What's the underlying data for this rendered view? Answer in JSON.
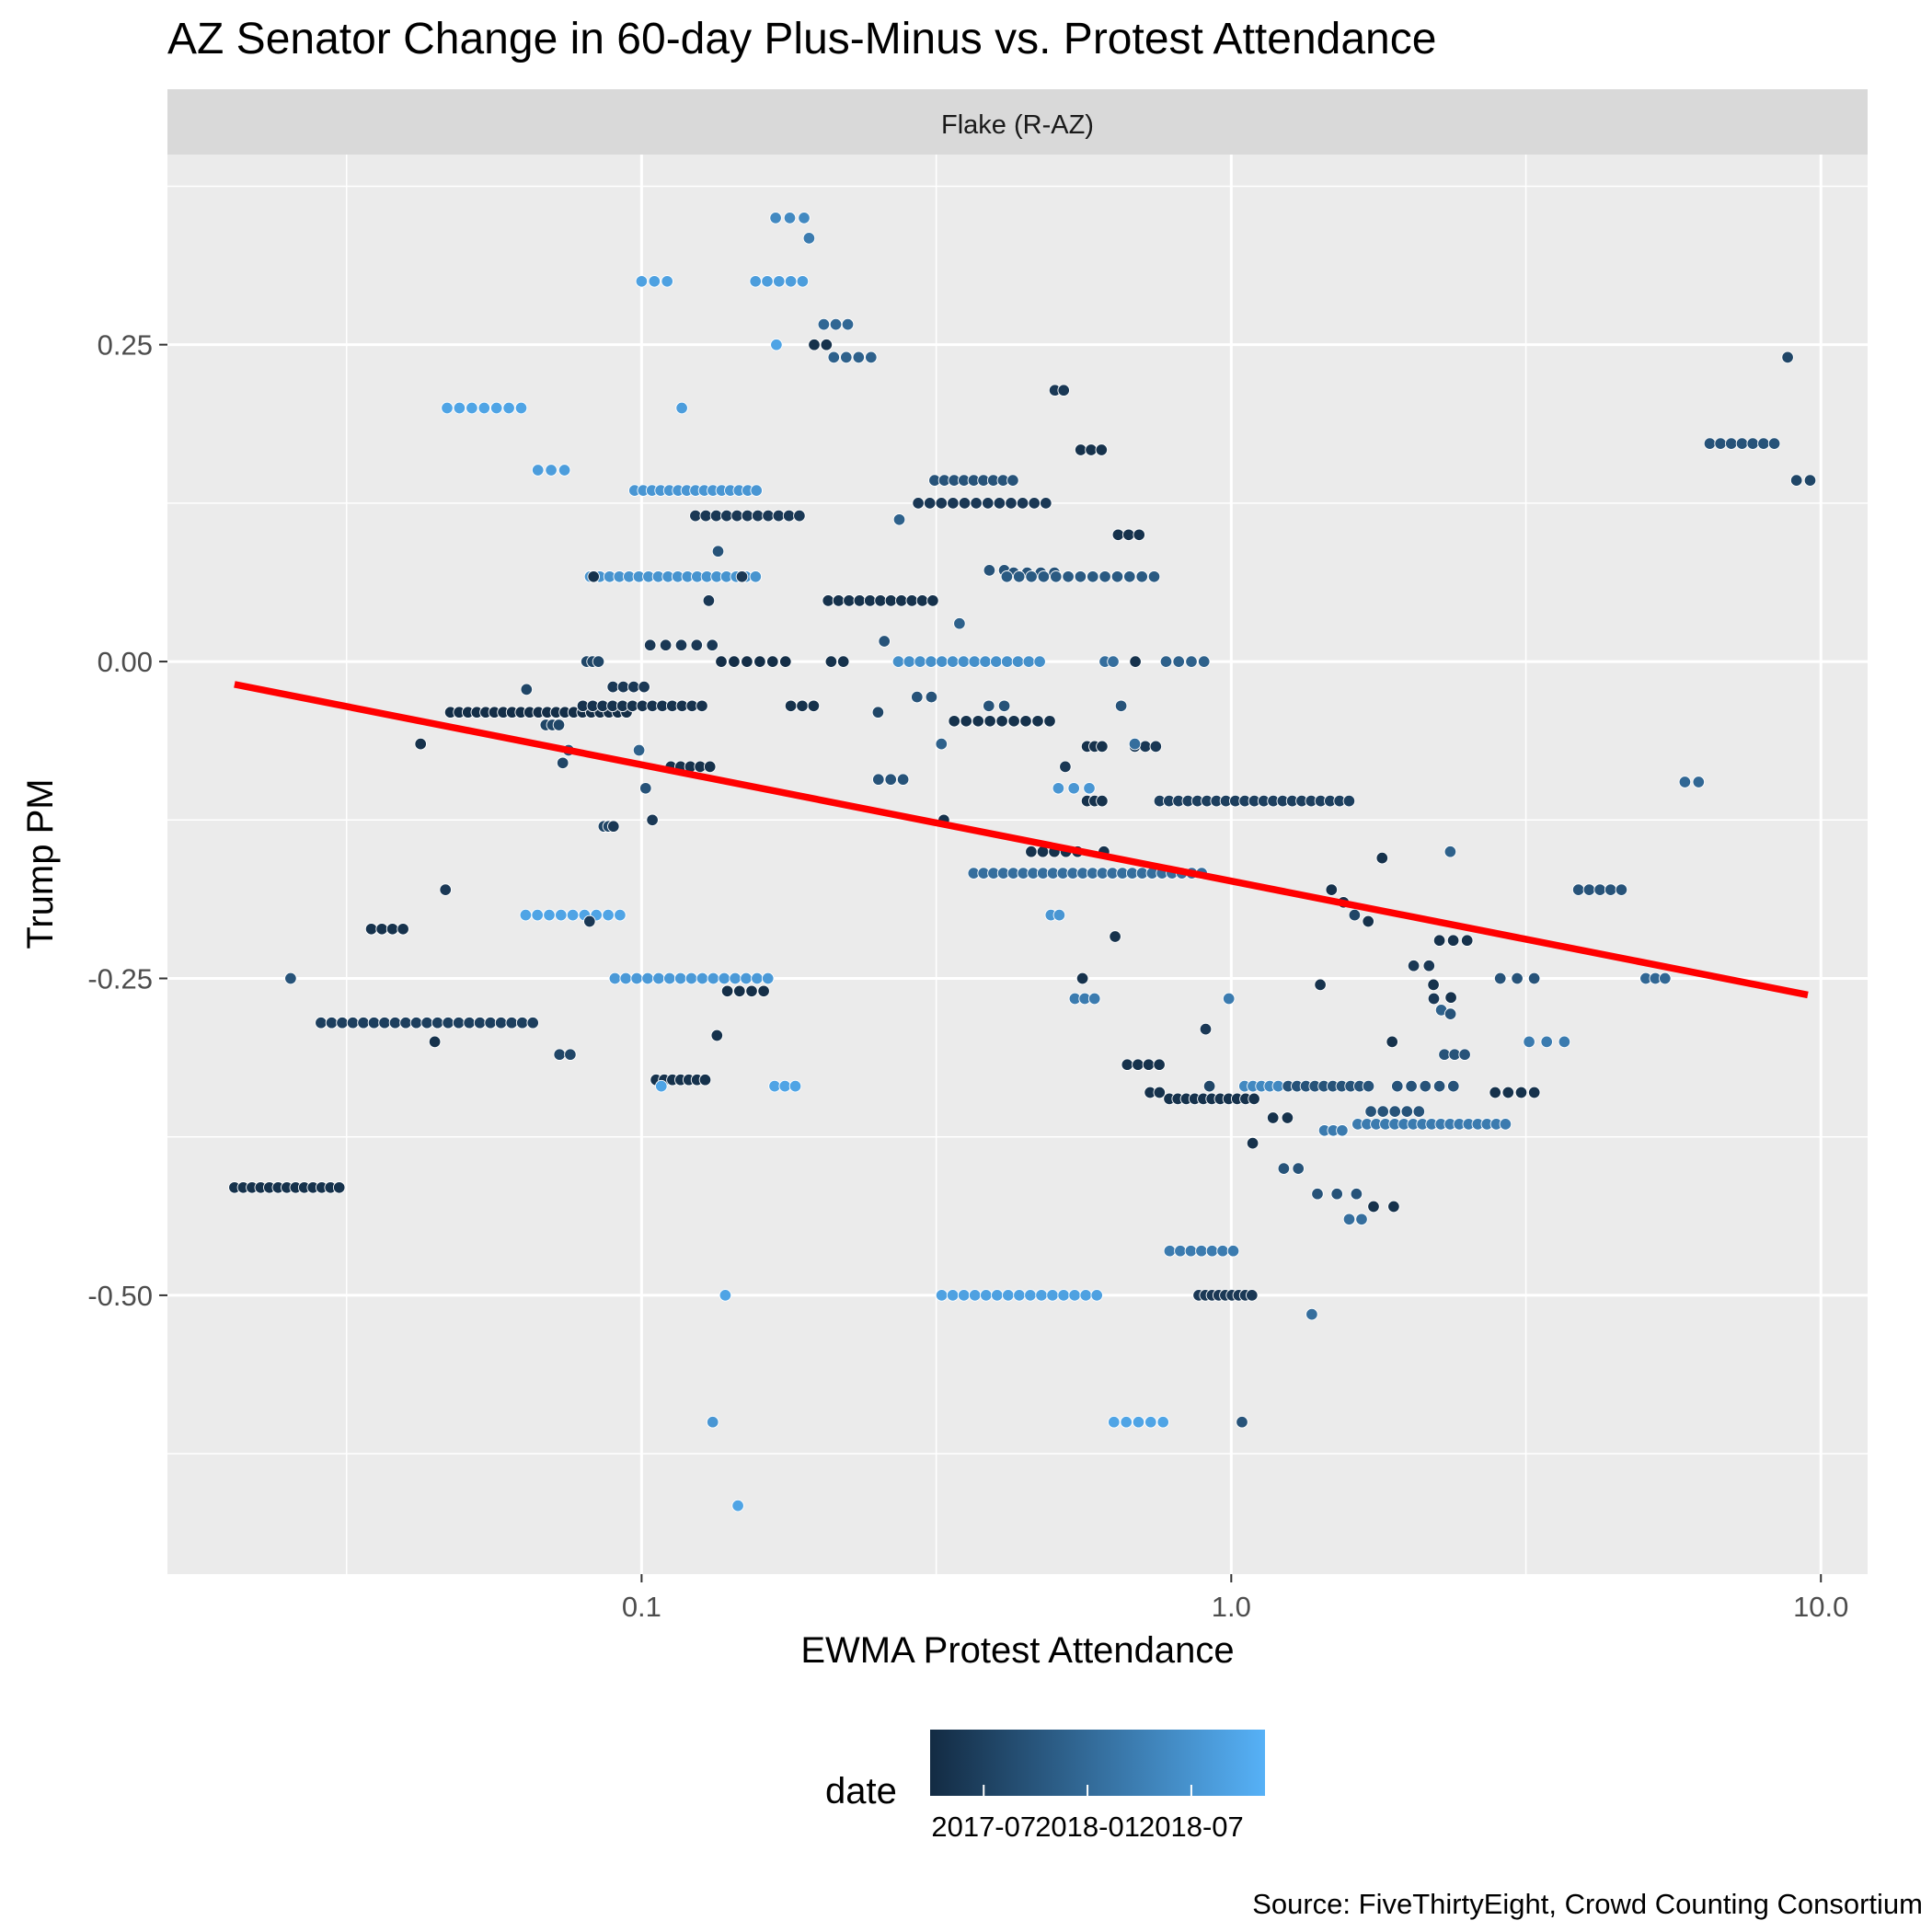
{
  "chart_data": {
    "type": "scatter",
    "title": "AZ Senator Change in 60-day Plus-Minus vs. Protest Attendance",
    "facet_label": "Flake (R-AZ)",
    "xlabel": "EWMA Protest Attendance",
    "ylabel": "Trump PM",
    "x_scale": "log10",
    "xlim": [
      0.0157,
      12.0
    ],
    "ylim": [
      -0.72,
      0.4
    ],
    "x_ticks": [
      {
        "value": 0.1,
        "label": "0.1"
      },
      {
        "value": 1.0,
        "label": "1.0"
      },
      {
        "value": 10.0,
        "label": "10.0"
      }
    ],
    "x_minor_ticks": [
      0.0316,
      0.316,
      3.16
    ],
    "y_ticks": [
      {
        "value": 0.25,
        "label": "0.25"
      },
      {
        "value": 0.0,
        "label": "0.00"
      },
      {
        "value": -0.25,
        "label": "-0.25"
      },
      {
        "value": -0.5,
        "label": "-0.50"
      }
    ],
    "y_minor_ticks": [
      0.375,
      0.125,
      -0.125,
      -0.375,
      -0.625
    ],
    "grid": true,
    "legend": {
      "title": "date",
      "position": "bottom",
      "colors": [
        "#132B43",
        "#56B1F7"
      ],
      "labels": [
        "2017-07",
        "2018-01",
        "2018-07"
      ],
      "label_positions": [
        0.16,
        0.47,
        0.78
      ]
    },
    "trend_line": {
      "color": "#FF0000",
      "x": [
        0.0204,
        9.5
      ],
      "y": [
        -0.018,
        -0.263
      ]
    },
    "runs": [
      {
        "y": -0.415,
        "x0": 0.0204,
        "x1": 0.0307,
        "n": 13,
        "c": 0.05
      },
      {
        "y": -0.285,
        "x0": 0.0286,
        "x1": 0.0654,
        "n": 21,
        "c": 0.15
      },
      {
        "y": -0.211,
        "x0": 0.0348,
        "x1": 0.0394,
        "n": 4,
        "c": 0.05
      },
      {
        "y": 0.2,
        "x0": 0.0468,
        "x1": 0.0625,
        "n": 7,
        "c": 0.9
      },
      {
        "y": 0.151,
        "x0": 0.0667,
        "x1": 0.074,
        "n": 3,
        "c": 0.85
      },
      {
        "y": -0.04,
        "x0": 0.0474,
        "x1": 0.0943,
        "n": 21,
        "c": 0.02
      },
      {
        "y": -0.035,
        "x0": 0.0795,
        "x1": 0.1266,
        "n": 13,
        "c": 0.06
      },
      {
        "y": -0.02,
        "x0": 0.0894,
        "x1": 0.101,
        "n": 4,
        "c": 0.1
      },
      {
        "y": 0.0,
        "x0": 0.0807,
        "x1": 0.0845,
        "n": 3,
        "c": 0.2
      },
      {
        "y": -0.05,
        "x0": 0.0688,
        "x1": 0.0724,
        "n": 3,
        "c": 0.2
      },
      {
        "y": -0.2,
        "x0": 0.0636,
        "x1": 0.0919,
        "n": 9,
        "c": 0.9
      },
      {
        "y": -0.25,
        "x0": 0.0901,
        "x1": 0.1638,
        "n": 15,
        "c": 0.82
      },
      {
        "y": -0.31,
        "x0": 0.0726,
        "x1": 0.0757,
        "n": 2,
        "c": 0.2
      },
      {
        "y": 0.135,
        "x0": 0.0973,
        "x1": 0.1566,
        "n": 15,
        "c": 0.8
      },
      {
        "y": 0.067,
        "x0": 0.0818,
        "x1": 0.1561,
        "n": 18,
        "c": 0.78
      },
      {
        "y": 0.3,
        "x0": 0.1,
        "x1": 0.1105,
        "n": 3,
        "c": 0.88
      },
      {
        "y": 0.3,
        "x0": 0.156,
        "x1": 0.1875,
        "n": 5,
        "c": 0.85
      },
      {
        "y": 0.35,
        "x0": 0.1688,
        "x1": 0.1886,
        "n": 3,
        "c": 0.7
      },
      {
        "y": 0.115,
        "x0": 0.1234,
        "x1": 0.1852,
        "n": 11,
        "c": 0.1
      },
      {
        "y": 0.013,
        "x0": 0.1034,
        "x1": 0.1318,
        "n": 5,
        "c": 0.1
      },
      {
        "y": -0.083,
        "x0": 0.1121,
        "x1": 0.1306,
        "n": 5,
        "c": 0.05
      },
      {
        "y": -0.33,
        "x0": 0.1058,
        "x1": 0.1282,
        "n": 7,
        "c": 0.05
      },
      {
        "y": 0.0,
        "x0": 0.1365,
        "x1": 0.1754,
        "n": 6,
        "c": 0.02
      },
      {
        "y": -0.26,
        "x0": 0.1398,
        "x1": 0.1611,
        "n": 4,
        "c": 0.03
      },
      {
        "y": -0.335,
        "x0": 0.1681,
        "x1": 0.1823,
        "n": 3,
        "c": 0.9
      },
      {
        "y": -0.035,
        "x0": 0.1791,
        "x1": 0.1958,
        "n": 3,
        "c": 0.05
      },
      {
        "y": 0.048,
        "x0": 0.2072,
        "x1": 0.3118,
        "n": 11,
        "c": 0.05
      },
      {
        "y": 0.25,
        "x0": 0.1962,
        "x1": 0.2058,
        "n": 2,
        "c": 0.05
      },
      {
        "y": 0.266,
        "x0": 0.2037,
        "x1": 0.2237,
        "n": 3,
        "c": 0.45
      },
      {
        "y": 0.24,
        "x0": 0.2118,
        "x1": 0.245,
        "n": 4,
        "c": 0.4
      },
      {
        "y": 0.0,
        "x0": 0.2096,
        "x1": 0.2199,
        "n": 2,
        "c": 0.05
      },
      {
        "y": 0.0,
        "x0": 0.2726,
        "x1": 0.4733,
        "n": 14,
        "c": 0.75
      },
      {
        "y": -0.093,
        "x0": 0.2521,
        "x1": 0.2776,
        "n": 3,
        "c": 0.3
      },
      {
        "y": -0.028,
        "x0": 0.2932,
        "x1": 0.3101,
        "n": 2,
        "c": 0.3
      },
      {
        "y": 0.125,
        "x0": 0.2946,
        "x1": 0.4848,
        "n": 12,
        "c": 0.1
      },
      {
        "y": 0.143,
        "x0": 0.314,
        "x1": 0.4262,
        "n": 9,
        "c": 0.3
      },
      {
        "y": 0.072,
        "x0": 0.3889,
        "x1": 0.4122,
        "n": 2,
        "c": 0.3
      },
      {
        "y": 0.07,
        "x0": 0.4275,
        "x1": 0.5013,
        "n": 4,
        "c": 0.3
      },
      {
        "y": 0.067,
        "x0": 0.4163,
        "x1": 0.74,
        "n": 13,
        "c": 0.35
      },
      {
        "y": -0.035,
        "x0": 0.388,
        "x1": 0.4122,
        "n": 2,
        "c": 0.3
      },
      {
        "y": -0.047,
        "x0": 0.339,
        "x1": 0.4922,
        "n": 9,
        "c": 0.05
      },
      {
        "y": -0.167,
        "x0": 0.3657,
        "x1": 0.891,
        "n": 24,
        "c": 0.5
      },
      {
        "y": -0.15,
        "x0": 0.4579,
        "x1": 0.5486,
        "n": 5,
        "c": 0.05
      },
      {
        "y": 0.1,
        "x0": 0.6431,
        "x1": 0.6978,
        "n": 3,
        "c": 0.05
      },
      {
        "y": 0.167,
        "x0": 0.5555,
        "x1": 0.6025,
        "n": 3,
        "c": 0.05
      },
      {
        "y": 0.214,
        "x0": 0.5023,
        "x1": 0.5198,
        "n": 2,
        "c": 0.1
      },
      {
        "y": -0.1,
        "x0": 0.5092,
        "x1": 0.5744,
        "n": 3,
        "c": 0.8
      },
      {
        "y": -0.067,
        "x0": 0.5695,
        "x1": 0.6039,
        "n": 3,
        "c": 0.05
      },
      {
        "y": -0.067,
        "x0": 0.6862,
        "x1": 0.7449,
        "n": 3,
        "c": 0.1
      },
      {
        "y": -0.11,
        "x0": 0.5695,
        "x1": 0.6039,
        "n": 3,
        "c": 0.05
      },
      {
        "y": -0.2,
        "x0": 0.4946,
        "x1": 0.5109,
        "n": 2,
        "c": 0.8
      },
      {
        "y": -0.266,
        "x0": 0.5431,
        "x1": 0.5864,
        "n": 3,
        "c": 0.6
      },
      {
        "y": 0.0,
        "x0": 0.6105,
        "x1": 0.6306,
        "n": 2,
        "c": 0.5
      },
      {
        "y": 0.0,
        "x0": 0.7753,
        "x1": 0.8991,
        "n": 4,
        "c": 0.4
      },
      {
        "y": -0.11,
        "x0": 0.756,
        "x1": 1.5843,
        "n": 21,
        "c": 0.15
      },
      {
        "y": -0.318,
        "x0": 0.6663,
        "x1": 0.7551,
        "n": 4,
        "c": 0.05
      },
      {
        "y": -0.34,
        "x0": 0.7285,
        "x1": 0.7557,
        "n": 2,
        "c": 0.05
      },
      {
        "y": -0.345,
        "x0": 0.7852,
        "x1": 1.0933,
        "n": 11,
        "c": 0.05
      },
      {
        "y": -0.6,
        "x0": 0.6325,
        "x1": 0.7662,
        "n": 5,
        "c": 0.9
      },
      {
        "y": -0.5,
        "x0": 0.3228,
        "x1": 0.5916,
        "n": 15,
        "c": 0.88
      },
      {
        "y": -0.5,
        "x0": 0.8808,
        "x1": 1.0843,
        "n": 9,
        "c": 0.1
      },
      {
        "y": -0.465,
        "x0": 0.7863,
        "x1": 1.0079,
        "n": 7,
        "c": 0.6
      },
      {
        "y": -0.335,
        "x0": 1.0534,
        "x1": 1.2013,
        "n": 5,
        "c": 0.7
      },
      {
        "y": -0.335,
        "x0": 1.2486,
        "x1": 1.7092,
        "n": 10,
        "c": 0.3
      },
      {
        "y": -0.335,
        "x0": 1.9127,
        "x1": 2.381,
        "n": 5,
        "c": 0.3
      },
      {
        "y": -0.37,
        "x0": 1.4389,
        "x1": 1.5421,
        "n": 3,
        "c": 0.6
      },
      {
        "y": -0.365,
        "x0": 1.639,
        "x1": 2.918,
        "n": 17,
        "c": 0.6
      },
      {
        "y": -0.355,
        "x0": 1.7252,
        "x1": 2.081,
        "n": 5,
        "c": 0.3
      },
      {
        "y": -0.34,
        "x0": 2.8027,
        "x1": 3.2648,
        "n": 4,
        "c": 0.05
      },
      {
        "y": -0.31,
        "x0": 2.2987,
        "x1": 2.489,
        "n": 3,
        "c": 0.3
      },
      {
        "y": -0.3,
        "x0": 3.2005,
        "x1": 3.6719,
        "n": 3,
        "c": 0.6
      },
      {
        "y": -0.25,
        "x0": 2.8584,
        "x1": 3.2643,
        "n": 3,
        "c": 0.3
      },
      {
        "y": -0.22,
        "x0": 2.2542,
        "x1": 2.5119,
        "n": 3,
        "c": 0.05
      },
      {
        "y": -0.24,
        "x0": 2.0388,
        "x1": 2.1648,
        "n": 2,
        "c": 0.1
      },
      {
        "y": -0.43,
        "x0": 1.7434,
        "x1": 1.8862,
        "n": 2,
        "c": 0.05
      },
      {
        "y": -0.42,
        "x0": 1.4002,
        "x1": 1.6305,
        "n": 3,
        "c": 0.3
      },
      {
        "y": -0.44,
        "x0": 1.585,
        "x1": 1.6636,
        "n": 2,
        "c": 0.5
      },
      {
        "y": -0.4,
        "x0": 1.2276,
        "x1": 1.2995,
        "n": 2,
        "c": 0.3
      },
      {
        "y": -0.36,
        "x0": 1.1769,
        "x1": 1.2456,
        "n": 2,
        "c": 0.05
      },
      {
        "y": -0.18,
        "x0": 3.8803,
        "x1": 4.5879,
        "n": 5,
        "c": 0.3
      },
      {
        "y": -0.25,
        "x0": 5.0466,
        "x1": 5.44,
        "n": 3,
        "c": 0.45
      },
      {
        "y": -0.095,
        "x0": 5.879,
        "x1": 6.203,
        "n": 2,
        "c": 0.45
      },
      {
        "y": 0.172,
        "x0": 6.4795,
        "x1": 8.336,
        "n": 7,
        "c": 0.3
      },
      {
        "y": 0.143,
        "x0": 9.0913,
        "x1": 9.588,
        "n": 2,
        "c": 0.2
      }
    ],
    "points": [
      {
        "x": 0.0254,
        "y": -0.25,
        "c": 0.3
      },
      {
        "x": 0.0422,
        "y": -0.065,
        "c": 0.05
      },
      {
        "x": 0.0465,
        "y": -0.18,
        "c": 0.1
      },
      {
        "x": 0.0446,
        "y": -0.3,
        "c": 0.05
      },
      {
        "x": 0.0638,
        "y": -0.022,
        "c": 0.2
      },
      {
        "x": 0.0735,
        "y": -0.08,
        "c": 0.2
      },
      {
        "x": 0.0752,
        "y": -0.07,
        "c": 0.3
      },
      {
        "x": 0.0816,
        "y": -0.205,
        "c": 0.1
      },
      {
        "x": 0.0863,
        "y": -0.13,
        "c": 0.2
      },
      {
        "x": 0.0879,
        "y": -0.13,
        "c": 0.2
      },
      {
        "x": 0.0896,
        "y": -0.13,
        "c": 0.1
      },
      {
        "x": 0.0829,
        "y": 0.067,
        "c": 0.05
      },
      {
        "x": 0.099,
        "y": -0.07,
        "c": 0.4
      },
      {
        "x": 0.1016,
        "y": -0.1,
        "c": 0.3
      },
      {
        "x": 0.1043,
        "y": -0.125,
        "c": 0.1
      },
      {
        "x": 0.117,
        "y": 0.2,
        "c": 0.85
      },
      {
        "x": 0.108,
        "y": -0.335,
        "c": 0.9
      },
      {
        "x": 0.13,
        "y": 0.048,
        "c": 0.1
      },
      {
        "x": 0.1348,
        "y": 0.087,
        "c": 0.3
      },
      {
        "x": 0.1342,
        "y": -0.295,
        "c": 0.05
      },
      {
        "x": 0.132,
        "y": -0.6,
        "c": 0.8
      },
      {
        "x": 0.1387,
        "y": -0.5,
        "c": 0.9
      },
      {
        "x": 0.1457,
        "y": -0.666,
        "c": 0.9
      },
      {
        "x": 0.148,
        "y": 0.067,
        "c": 0.1
      },
      {
        "x": 0.1693,
        "y": 0.25,
        "c": 0.9
      },
      {
        "x": 0.1923,
        "y": 0.334,
        "c": 0.6
      },
      {
        "x": 0.2518,
        "y": -0.04,
        "c": 0.2
      },
      {
        "x": 0.258,
        "y": 0.016,
        "c": 0.3
      },
      {
        "x": 0.2736,
        "y": 0.112,
        "c": 0.4
      },
      {
        "x": 0.3225,
        "y": -0.065,
        "c": 0.4
      },
      {
        "x": 0.3255,
        "y": -0.125,
        "c": 0.05
      },
      {
        "x": 0.346,
        "y": 0.03,
        "c": 0.4
      },
      {
        "x": 0.523,
        "y": -0.083,
        "c": 0.1
      },
      {
        "x": 0.5593,
        "y": -0.25,
        "c": 0.05
      },
      {
        "x": 0.6081,
        "y": -0.15,
        "c": 0.05
      },
      {
        "x": 0.6355,
        "y": -0.217,
        "c": 0.05
      },
      {
        "x": 0.6505,
        "y": -0.035,
        "c": 0.3
      },
      {
        "x": 0.6878,
        "y": 0.0,
        "c": 0.05
      },
      {
        "x": 0.6863,
        "y": -0.065,
        "c": 0.5
      },
      {
        "x": 0.9049,
        "y": -0.29,
        "c": 0.1
      },
      {
        "x": 0.9185,
        "y": -0.335,
        "c": 0.2
      },
      {
        "x": 0.9905,
        "y": -0.266,
        "c": 0.6
      },
      {
        "x": 1.0427,
        "y": -0.6,
        "c": 0.3
      },
      {
        "x": 1.0874,
        "y": -0.38,
        "c": 0.05
      },
      {
        "x": 1.3699,
        "y": -0.515,
        "c": 0.5
      },
      {
        "x": 1.4158,
        "y": -0.255,
        "c": 0.05
      },
      {
        "x": 1.4793,
        "y": -0.18,
        "c": 0.05
      },
      {
        "x": 1.5498,
        "y": -0.19,
        "c": 0.05
      },
      {
        "x": 1.6186,
        "y": -0.2,
        "c": 0.2
      },
      {
        "x": 1.707,
        "y": -0.205,
        "c": 0.05
      },
      {
        "x": 1.8023,
        "y": -0.155,
        "c": 0.05
      },
      {
        "x": 1.8744,
        "y": -0.3,
        "c": 0.05
      },
      {
        "x": 2.2025,
        "y": -0.255,
        "c": 0.05
      },
      {
        "x": 2.206,
        "y": -0.266,
        "c": 0.1
      },
      {
        "x": 2.271,
        "y": -0.275,
        "c": 0.4
      },
      {
        "x": 2.358,
        "y": -0.265,
        "c": 0.05
      },
      {
        "x": 2.354,
        "y": -0.278,
        "c": 0.3
      },
      {
        "x": 2.352,
        "y": -0.15,
        "c": 0.4
      },
      {
        "x": 8.781,
        "y": 0.24,
        "c": 0.2
      }
    ]
  },
  "source": "Source: FiveThirtyEight, Crowd Counting Consortium"
}
